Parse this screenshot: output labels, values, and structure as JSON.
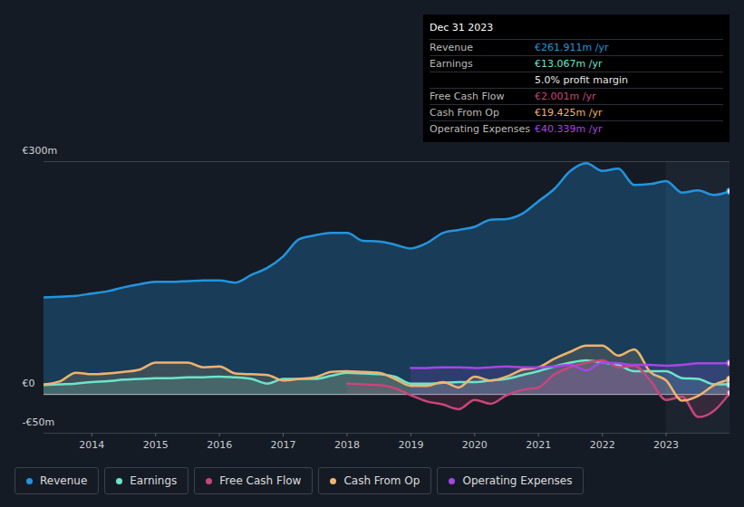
{
  "chart_data": {
    "type": "area",
    "x": [
      2013.25,
      2013.5,
      2013.75,
      2014,
      2014.25,
      2014.5,
      2014.75,
      2015,
      2015.25,
      2015.5,
      2015.75,
      2016,
      2016.25,
      2016.5,
      2016.75,
      2017,
      2017.25,
      2017.5,
      2017.75,
      2018,
      2018.25,
      2018.5,
      2018.75,
      2019,
      2019.25,
      2019.5,
      2019.75,
      2020,
      2020.25,
      2020.5,
      2020.75,
      2021,
      2021.25,
      2021.5,
      2021.75,
      2022,
      2022.25,
      2022.5,
      2022.75,
      2023,
      2023.25,
      2023.5,
      2023.75,
      2024
    ],
    "series": [
      {
        "name": "Revenue",
        "color": "#2394DF",
        "values": [
          125,
          126,
          127,
          130,
          133,
          138,
          142,
          145,
          145,
          146,
          147,
          147,
          144,
          154,
          163,
          178,
          200,
          205,
          208,
          208,
          198,
          197,
          193,
          188,
          195,
          208,
          212,
          216,
          225,
          226,
          233,
          249,
          265,
          288,
          298,
          288,
          291,
          270,
          271,
          275,
          260,
          263,
          257,
          261.911
        ]
      },
      {
        "name": "Earnings",
        "color": "#6CE5C9",
        "values": [
          12,
          13,
          14,
          16,
          17,
          19,
          20,
          21,
          21,
          22,
          22,
          23,
          22,
          20,
          14,
          20,
          20,
          20,
          24,
          28,
          27,
          26,
          23,
          14,
          14,
          15,
          16,
          16,
          18,
          20,
          25,
          30,
          36,
          41,
          44,
          41,
          38,
          30,
          30,
          30,
          21,
          20,
          13,
          13.067
        ]
      },
      {
        "name": "Free Cash Flow",
        "color": "#C7467B",
        "values": [
          null,
          null,
          null,
          null,
          null,
          null,
          null,
          null,
          null,
          null,
          null,
          null,
          null,
          null,
          null,
          null,
          null,
          null,
          null,
          14,
          13,
          12,
          8,
          -1,
          -9,
          -13,
          -19,
          -7,
          -12,
          -1,
          6,
          9,
          26,
          35,
          41,
          44,
          35,
          37,
          18,
          -7,
          -3,
          -29,
          -21,
          2.001
        ]
      },
      {
        "name": "Cash From Op",
        "color": "#F0B36E",
        "values": [
          13,
          17,
          28,
          26,
          27,
          29,
          32,
          41,
          41,
          41,
          35,
          36,
          27,
          26,
          25,
          18,
          20,
          22,
          29,
          30,
          29,
          28,
          20,
          11,
          11,
          16,
          9,
          23,
          18,
          23,
          32,
          35,
          46,
          55,
          63,
          63,
          50,
          58,
          29,
          18,
          -8,
          -2,
          12,
          19.425
        ]
      },
      {
        "name": "Operating Expenses",
        "color": "#A745E8",
        "values": [
          null,
          null,
          null,
          null,
          null,
          null,
          null,
          null,
          null,
          null,
          null,
          null,
          null,
          null,
          null,
          null,
          null,
          null,
          null,
          null,
          null,
          null,
          null,
          34,
          34,
          35,
          35,
          34,
          35,
          36,
          35,
          35,
          36,
          38,
          31,
          41,
          40,
          38,
          38,
          37,
          38,
          40,
          40,
          40.339
        ]
      }
    ],
    "xlim": [
      2013.25,
      2024
    ],
    "xticks": [
      2014,
      2015,
      2016,
      2017,
      2018,
      2019,
      2020,
      2021,
      2022,
      2023
    ],
    "ylim": [
      -50,
      300
    ],
    "yticks": [
      {
        "value": -50,
        "label": "-€50m"
      },
      {
        "value": 0,
        "label": "€0"
      },
      {
        "value": 300,
        "label": "€300m"
      }
    ],
    "grid": true,
    "legend": "bottom",
    "annotations": {
      "title": "Dec 31 2023",
      "rows": [
        {
          "label": "Revenue",
          "text": "€261.911m /yr"
        },
        {
          "label": "Earnings",
          "text": "€13.067m /yr"
        },
        {
          "text": "5.0% profit margin"
        },
        {
          "label": "Free Cash Flow",
          "text": "€2.001m /yr"
        },
        {
          "label": "Cash From Op",
          "text": "€19.425m /yr"
        },
        {
          "label": "Operating Expenses",
          "text": "€40.339m /yr"
        }
      ]
    }
  }
}
